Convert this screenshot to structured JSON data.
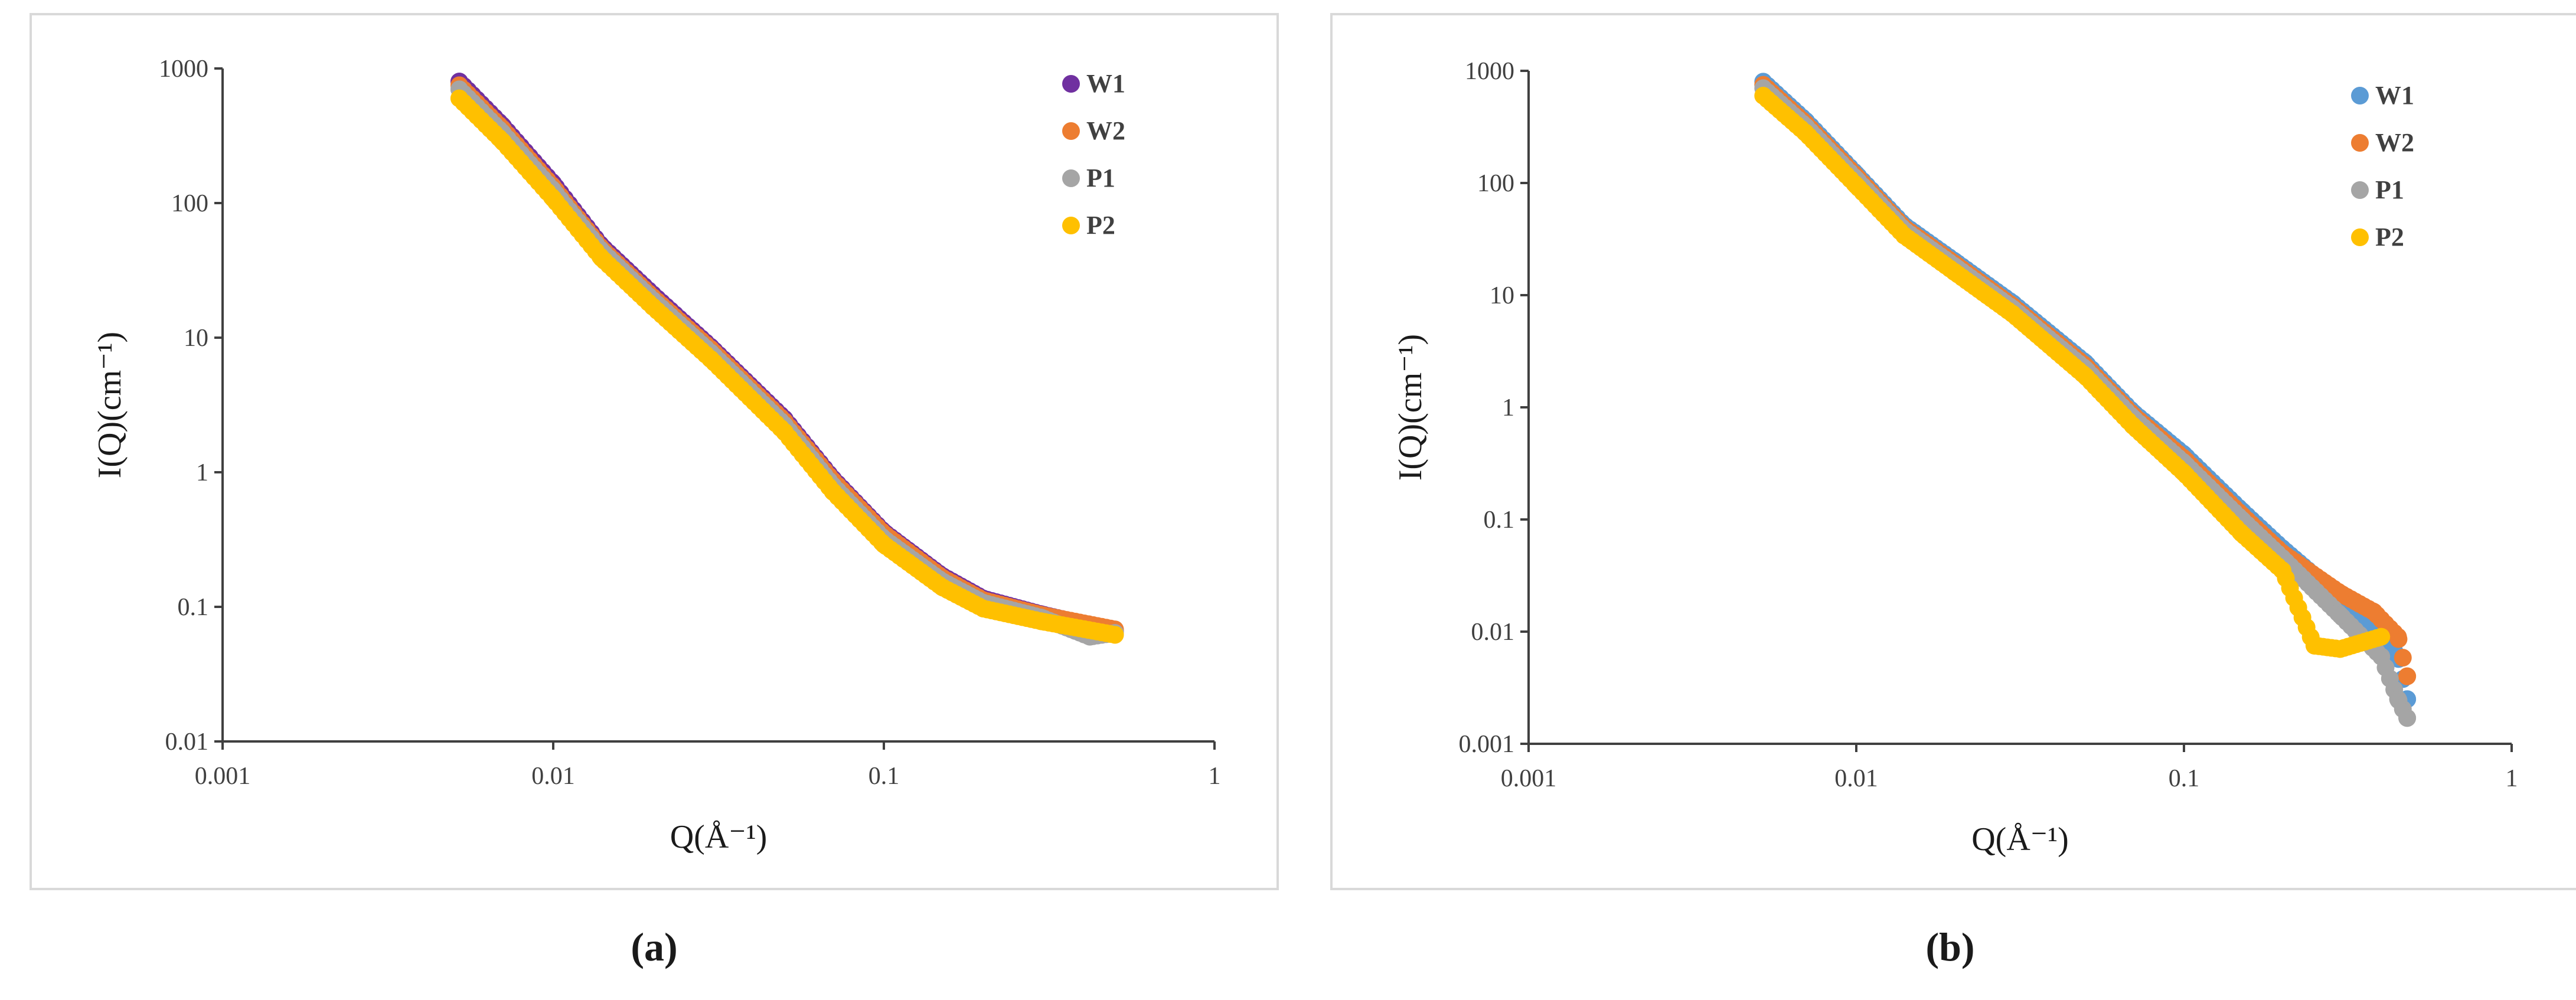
{
  "figure": {
    "captions": [
      "(a)",
      "(b)"
    ]
  },
  "chart_data": [
    {
      "type": "scatter",
      "panel_label": "(a)",
      "xscale": "log",
      "yscale": "log",
      "xlabel": "Q(Å⁻¹)",
      "ylabel": "I(Q)(cm⁻¹)",
      "xlim": [
        0.001,
        1
      ],
      "ylim": [
        0.01,
        1000
      ],
      "xticks": [
        "0.001",
        "0.01",
        "0.1",
        "1"
      ],
      "yticks": [
        "0.01",
        "0.1",
        "1",
        "10",
        "100",
        "1000"
      ],
      "legend_position": "top-right",
      "series": [
        {
          "name": "W1",
          "color": "#7030a0",
          "shift": 1.12,
          "points": [
            [
              0.0052,
              800
            ],
            [
              0.007,
              380
            ],
            [
              0.01,
              140
            ],
            [
              0.014,
              48
            ],
            [
              0.02,
              21
            ],
            [
              0.03,
              8.5
            ],
            [
              0.05,
              2.5
            ],
            [
              0.07,
              0.9
            ],
            [
              0.1,
              0.36
            ],
            [
              0.15,
              0.17
            ],
            [
              0.2,
              0.115
            ],
            [
              0.3,
              0.088
            ],
            [
              0.5,
              0.066
            ]
          ]
        },
        {
          "name": "W2",
          "color": "#ed7d31",
          "shift": 1.05,
          "points": [
            [
              0.0052,
              750
            ],
            [
              0.007,
              360
            ],
            [
              0.01,
              132
            ],
            [
              0.014,
              46
            ],
            [
              0.02,
              20
            ],
            [
              0.03,
              8.2
            ],
            [
              0.05,
              2.4
            ],
            [
              0.07,
              0.87
            ],
            [
              0.1,
              0.35
            ],
            [
              0.15,
              0.165
            ],
            [
              0.2,
              0.112
            ],
            [
              0.3,
              0.087
            ],
            [
              0.5,
              0.068
            ]
          ]
        },
        {
          "name": "P1",
          "color": "#a5a5a5",
          "shift": 0.95,
          "points": [
            [
              0.0052,
              700
            ],
            [
              0.007,
              335
            ],
            [
              0.01,
              124
            ],
            [
              0.014,
              44
            ],
            [
              0.02,
              19
            ],
            [
              0.03,
              7.7
            ],
            [
              0.05,
              2.25
            ],
            [
              0.07,
              0.8
            ],
            [
              0.1,
              0.32
            ],
            [
              0.15,
              0.155
            ],
            [
              0.2,
              0.107
            ],
            [
              0.3,
              0.083
            ],
            [
              0.42,
              0.06
            ],
            [
              0.5,
              0.064
            ]
          ]
        },
        {
          "name": "P2",
          "color": "#ffc000",
          "shift": 0.82,
          "points": [
            [
              0.0052,
              600
            ],
            [
              0.007,
              290
            ],
            [
              0.01,
              108
            ],
            [
              0.014,
              39
            ],
            [
              0.02,
              17
            ],
            [
              0.03,
              6.9
            ],
            [
              0.05,
              2.0
            ],
            [
              0.07,
              0.72
            ],
            [
              0.1,
              0.29
            ],
            [
              0.15,
              0.14
            ],
            [
              0.2,
              0.097
            ],
            [
              0.3,
              0.078
            ],
            [
              0.5,
              0.062
            ]
          ]
        }
      ]
    },
    {
      "type": "scatter",
      "panel_label": "(b)",
      "xscale": "log",
      "yscale": "log",
      "xlabel": "Q(Å⁻¹)",
      "ylabel": "I(Q)(cm⁻¹)",
      "xlim": [
        0.001,
        1
      ],
      "ylim": [
        0.001,
        1000
      ],
      "xticks": [
        "0.001",
        "0.01",
        "0.1",
        "1"
      ],
      "yticks": [
        "0.001",
        "0.01",
        "0.1",
        "1",
        "10",
        "100",
        "1000"
      ],
      "legend_position": "top-right",
      "series": [
        {
          "name": "W1",
          "color": "#5b9bd5",
          "shift": 1.12,
          "points": [
            [
              0.0052,
              800
            ],
            [
              0.007,
              360
            ],
            [
              0.01,
              120
            ],
            [
              0.014,
              42
            ],
            [
              0.02,
              20
            ],
            [
              0.03,
              8.5
            ],
            [
              0.05,
              2.5
            ],
            [
              0.07,
              0.9
            ],
            [
              0.1,
              0.38
            ],
            [
              0.15,
              0.12
            ],
            [
              0.2,
              0.055
            ],
            [
              0.3,
              0.02
            ],
            [
              0.4,
              0.01
            ],
            [
              0.45,
              0.006
            ],
            [
              0.48,
              0.0025
            ]
          ]
        },
        {
          "name": "W2",
          "color": "#ed7d31",
          "shift": 1.05,
          "points": [
            [
              0.0052,
              750
            ],
            [
              0.007,
              340
            ],
            [
              0.01,
              115
            ],
            [
              0.014,
              40
            ],
            [
              0.02,
              19
            ],
            [
              0.03,
              8.0
            ],
            [
              0.05,
              2.35
            ],
            [
              0.07,
              0.85
            ],
            [
              0.1,
              0.35
            ],
            [
              0.15,
              0.11
            ],
            [
              0.2,
              0.05
            ],
            [
              0.3,
              0.022
            ],
            [
              0.38,
              0.015
            ],
            [
              0.45,
              0.009
            ],
            [
              0.48,
              0.004
            ]
          ]
        },
        {
          "name": "P1",
          "color": "#a5a5a5",
          "shift": 0.95,
          "points": [
            [
              0.0052,
              700
            ],
            [
              0.007,
              320
            ],
            [
              0.01,
              108
            ],
            [
              0.014,
              38
            ],
            [
              0.02,
              18
            ],
            [
              0.03,
              7.6
            ],
            [
              0.05,
              2.2
            ],
            [
              0.07,
              0.8
            ],
            [
              0.1,
              0.32
            ],
            [
              0.15,
              0.1
            ],
            [
              0.2,
              0.045
            ],
            [
              0.3,
              0.014
            ],
            [
              0.4,
              0.006
            ],
            [
              0.45,
              0.0025
            ],
            [
              0.48,
              0.0017
            ]
          ]
        },
        {
          "name": "P2",
          "color": "#ffc000",
          "shift": 0.85,
          "points": [
            [
              0.0052,
              600
            ],
            [
              0.007,
              280
            ],
            [
              0.01,
              95
            ],
            [
              0.014,
              34
            ],
            [
              0.02,
              16
            ],
            [
              0.03,
              6.8
            ],
            [
              0.05,
              1.9
            ],
            [
              0.07,
              0.68
            ],
            [
              0.1,
              0.26
            ],
            [
              0.15,
              0.075
            ],
            [
              0.2,
              0.035
            ],
            [
              0.25,
              0.0075
            ],
            [
              0.3,
              0.007
            ],
            [
              0.4,
              0.009
            ]
          ]
        }
      ]
    }
  ]
}
